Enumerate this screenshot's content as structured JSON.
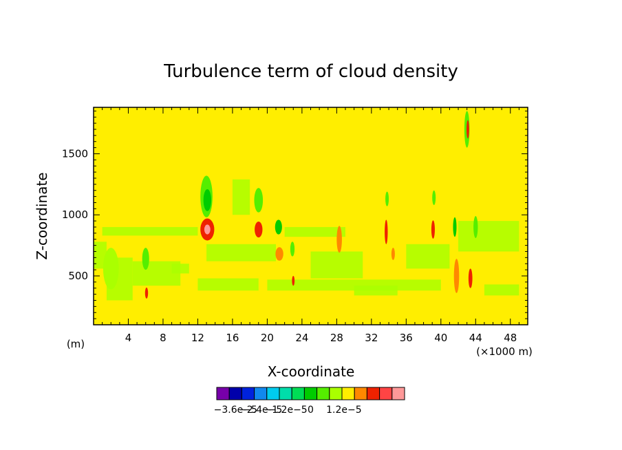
{
  "chart_data": {
    "type": "heatmap",
    "title": "Turbulence term of cloud density",
    "xlabel": "X-coordinate",
    "ylabel": "Z-coordinate",
    "x_unit_left": "(m)",
    "x_unit_right": "(×1000 m)",
    "xlim": [
      0,
      50
    ],
    "ylim": [
      100,
      1880
    ],
    "x_ticks": [
      4,
      8,
      12,
      16,
      20,
      24,
      28,
      32,
      36,
      40,
      44,
      48
    ],
    "y_ticks": [
      500,
      1000,
      1500
    ],
    "background_level_color": "#ffee00",
    "colorbar": {
      "colors": [
        "#7700aa",
        "#0000aa",
        "#0022dd",
        "#1188ee",
        "#00ccee",
        "#00ddaa",
        "#00dd55",
        "#00cc00",
        "#55ee00",
        "#aaff00",
        "#ffee00",
        "#ff8800",
        "#ee2200",
        "#ff4444",
        "#ff9999"
      ],
      "tick_labels": [
        "−3.6e−5",
        "−2.4e−5",
        "−1.2e−5",
        "0",
        "1.2e−5"
      ]
    },
    "features": [
      {
        "x": 2.0,
        "z": 560,
        "w": 1.8,
        "h": 340,
        "color": "#aaff00"
      },
      {
        "x": 6.0,
        "z": 640,
        "w": 0.8,
        "h": 180,
        "color": "#55ee00"
      },
      {
        "x": 6.1,
        "z": 360,
        "w": 0.35,
        "h": 90,
        "color": "#ee2200"
      },
      {
        "x": 13.0,
        "z": 1150,
        "w": 1.4,
        "h": 340,
        "color": "#55ee00"
      },
      {
        "x": 13.1,
        "z": 1120,
        "w": 0.9,
        "h": 180,
        "color": "#00cc00"
      },
      {
        "x": 13.1,
        "z": 880,
        "w": 1.6,
        "h": 180,
        "color": "#ee2200"
      },
      {
        "x": 13.1,
        "z": 880,
        "w": 0.7,
        "h": 80,
        "color": "#ff9999"
      },
      {
        "x": 19.0,
        "z": 1120,
        "w": 1.0,
        "h": 200,
        "color": "#55ee00"
      },
      {
        "x": 19.0,
        "z": 880,
        "w": 0.9,
        "h": 130,
        "color": "#ee2200"
      },
      {
        "x": 21.3,
        "z": 900,
        "w": 0.8,
        "h": 120,
        "color": "#00cc00"
      },
      {
        "x": 21.4,
        "z": 680,
        "w": 0.9,
        "h": 110,
        "color": "#ff8800"
      },
      {
        "x": 22.9,
        "z": 720,
        "w": 0.5,
        "h": 120,
        "color": "#55ee00"
      },
      {
        "x": 23.0,
        "z": 460,
        "w": 0.3,
        "h": 80,
        "color": "#ee2200"
      },
      {
        "x": 28.3,
        "z": 800,
        "w": 0.6,
        "h": 220,
        "color": "#ff8800"
      },
      {
        "x": 33.7,
        "z": 860,
        "w": 0.35,
        "h": 200,
        "color": "#ee2200"
      },
      {
        "x": 33.8,
        "z": 1130,
        "w": 0.4,
        "h": 120,
        "color": "#55ee00"
      },
      {
        "x": 34.5,
        "z": 680,
        "w": 0.4,
        "h": 100,
        "color": "#ff8800"
      },
      {
        "x": 39.1,
        "z": 880,
        "w": 0.4,
        "h": 150,
        "color": "#ee2200"
      },
      {
        "x": 39.2,
        "z": 1140,
        "w": 0.4,
        "h": 120,
        "color": "#55ee00"
      },
      {
        "x": 41.8,
        "z": 500,
        "w": 0.6,
        "h": 280,
        "color": "#ff8800"
      },
      {
        "x": 41.6,
        "z": 900,
        "w": 0.4,
        "h": 160,
        "color": "#00cc00"
      },
      {
        "x": 43.0,
        "z": 1700,
        "w": 0.6,
        "h": 300,
        "color": "#55ee00"
      },
      {
        "x": 43.1,
        "z": 1700,
        "w": 0.3,
        "h": 150,
        "color": "#ee2200"
      },
      {
        "x": 43.4,
        "z": 480,
        "w": 0.45,
        "h": 160,
        "color": "#ee2200"
      },
      {
        "x": 44.0,
        "z": 900,
        "w": 0.5,
        "h": 180,
        "color": "#55ee00"
      }
    ]
  }
}
